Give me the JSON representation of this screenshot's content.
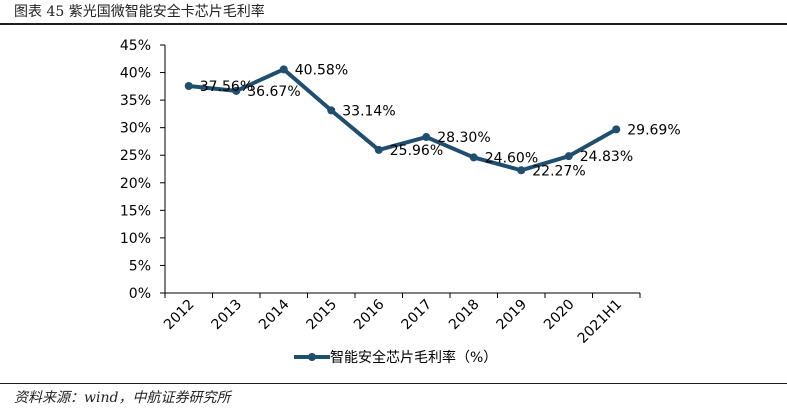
{
  "figure": {
    "title": "图表 45 紫光国微智能安全卡芯片毛利率",
    "source": "资料来源：wind，中航证券研究所"
  },
  "chart_data": {
    "type": "line",
    "categories": [
      "2012",
      "2013",
      "2014",
      "2015",
      "2016",
      "2017",
      "2018",
      "2019",
      "2020",
      "2021H1"
    ],
    "series": [
      {
        "name": "智能安全芯片毛利率（%）",
        "values": [
          37.56,
          36.67,
          40.58,
          33.14,
          25.96,
          28.3,
          24.6,
          22.27,
          24.83,
          29.69
        ],
        "data_labels": [
          "37.56%",
          "36.67%",
          "40.58%",
          "33.14%",
          "25.96%",
          "28.30%",
          "24.60%",
          "22.27%",
          "24.83%",
          "29.69%"
        ],
        "color": "#1f4e6e"
      }
    ],
    "ylim": [
      0,
      45
    ],
    "yticks": [
      "0%",
      "5%",
      "10%",
      "15%",
      "20%",
      "25%",
      "30%",
      "35%",
      "40%",
      "45%"
    ],
    "grid": false,
    "legend": "bottom"
  }
}
